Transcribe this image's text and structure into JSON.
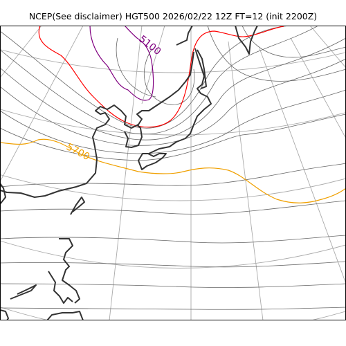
{
  "title": "NCEP(See disclaimer) HGT500 2026/02/22 12Z FT=12 (init 2200Z)",
  "variable": "HGT500",
  "valid_time": "2026/02/22 12Z",
  "forecast_hour": "FT=12",
  "init": "init 2200Z",
  "contour_labels": [
    {
      "text": "5100",
      "color": "#800080"
    },
    {
      "text": "5700",
      "color": "#f0a000"
    }
  ],
  "colors": {
    "coastline": "#333333",
    "graticule": "#aaaaaa",
    "contour": "#666666",
    "contour_5100": "#800080",
    "contour_5400": "#ff0000",
    "contour_5700": "#f0a000",
    "frame": "#000000"
  }
}
